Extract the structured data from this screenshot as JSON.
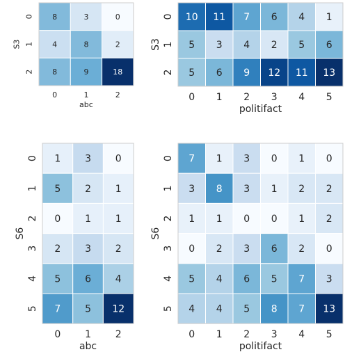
{
  "colorscale": [
    "#f7fbff",
    "#deebf7",
    "#c6dbef",
    "#9ecae1",
    "#6baed6",
    "#4292c6",
    "#2171b5",
    "#08519c",
    "#08306b"
  ],
  "chart_data": [
    {
      "type": "heatmap",
      "ylabel": "S3",
      "xlabel": "abc",
      "x_ticks": [
        "0",
        "1",
        "2"
      ],
      "y_ticks": [
        "0",
        "1",
        "2"
      ],
      "values": [
        [
          8,
          3,
          0
        ],
        [
          4,
          8,
          2
        ],
        [
          8,
          9,
          18
        ]
      ],
      "vmax": 18
    },
    {
      "type": "heatmap",
      "ylabel": "S3",
      "xlabel": "politifact",
      "x_ticks": [
        "0",
        "1",
        "2",
        "3",
        "4",
        "5"
      ],
      "y_ticks": [
        "0",
        "1",
        "2"
      ],
      "values": [
        [
          10,
          11,
          7,
          6,
          4,
          1
        ],
        [
          5,
          3,
          4,
          2,
          5,
          6
        ],
        [
          5,
          6,
          9,
          12,
          11,
          13
        ]
      ],
      "vmax": 13
    },
    {
      "type": "heatmap",
      "ylabel": "S6",
      "xlabel": "abc",
      "x_ticks": [
        "0",
        "1",
        "2"
      ],
      "y_ticks": [
        "0",
        "1",
        "2",
        "3",
        "4",
        "5"
      ],
      "values": [
        [
          1,
          3,
          0
        ],
        [
          5,
          2,
          1
        ],
        [
          0,
          1,
          1
        ],
        [
          2,
          3,
          2
        ],
        [
          5,
          6,
          4
        ],
        [
          7,
          5,
          12
        ]
      ],
      "vmax": 12
    },
    {
      "type": "heatmap",
      "ylabel": "S6",
      "xlabel": "politifact",
      "x_ticks": [
        "0",
        "1",
        "2",
        "3",
        "4",
        "5"
      ],
      "y_ticks": [
        "0",
        "1",
        "2",
        "3",
        "4",
        "5"
      ],
      "values": [
        [
          7,
          1,
          3,
          0,
          1,
          0
        ],
        [
          3,
          8,
          3,
          1,
          2,
          2
        ],
        [
          1,
          1,
          0,
          0,
          1,
          2
        ],
        [
          0,
          2,
          3,
          6,
          2,
          0
        ],
        [
          5,
          4,
          6,
          5,
          7,
          3
        ],
        [
          4,
          4,
          5,
          8,
          7,
          13
        ]
      ],
      "vmax": 13
    }
  ]
}
